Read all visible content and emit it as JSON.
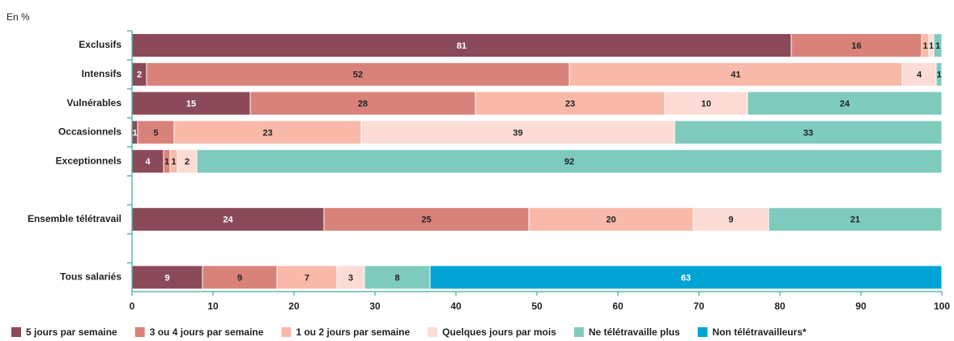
{
  "chart_data": {
    "type": "stacked_barh",
    "subtitle": "En %",
    "categories": [
      "Exclusifs",
      "Intensifs",
      "Vulnérables",
      "Occasionnels",
      "Exceptionnels",
      "Ensemble télétravail",
      "Tous salariés"
    ],
    "series": [
      {
        "name": "5 jours par semaine",
        "color": "#8b4a5a",
        "values": [
          81.4,
          1.8,
          14.6,
          0.7,
          3.9,
          23.7,
          8.7
        ],
        "value_labels": [
          "81",
          "2",
          "15",
          "1",
          "4",
          "24",
          "9"
        ]
      },
      {
        "name": "3 ou 4 jours par semaine",
        "color": "#d9827a",
        "values": [
          16.1,
          52.2,
          27.8,
          4.5,
          0.8,
          25.3,
          9.2
        ],
        "value_labels": [
          "16",
          "52",
          "28",
          "5",
          "1",
          "25",
          "9"
        ]
      },
      {
        "name": "1 ou 2 jours par semaine",
        "color": "#f9b9a8",
        "values": [
          0.9,
          41.1,
          23.4,
          23.1,
          0.9,
          20.3,
          7.4
        ],
        "value_labels": [
          "1",
          "41",
          "23",
          "23",
          "1",
          "20",
          "7"
        ]
      },
      {
        "name": "Quelques jours par mois",
        "color": "#fcdcd5",
        "values": [
          0.6,
          4.2,
          10.2,
          38.7,
          2.4,
          9.3,
          3.4
        ],
        "value_labels": [
          "1",
          "4",
          "10",
          "39",
          "2",
          "9",
          "3"
        ]
      },
      {
        "name": "Ne télétravaille plus",
        "color": "#7ecbbe",
        "values": [
          1.0,
          0.7,
          24.0,
          33.0,
          92.0,
          21.4,
          8.1
        ],
        "value_labels": [
          "1",
          "1",
          "24",
          "33",
          "92",
          "21",
          "8"
        ]
      },
      {
        "name": "Non télétravailleurs*",
        "color": "#00a3d4",
        "values": [
          null,
          null,
          null,
          null,
          null,
          null,
          63.2
        ],
        "value_labels": [
          null,
          null,
          null,
          null,
          null,
          null,
          "63"
        ]
      }
    ],
    "xlim": [
      0,
      100
    ],
    "xticks": [
      0,
      10,
      20,
      30,
      40,
      50,
      60,
      70,
      80,
      90,
      100
    ],
    "legend": "bottom"
  }
}
